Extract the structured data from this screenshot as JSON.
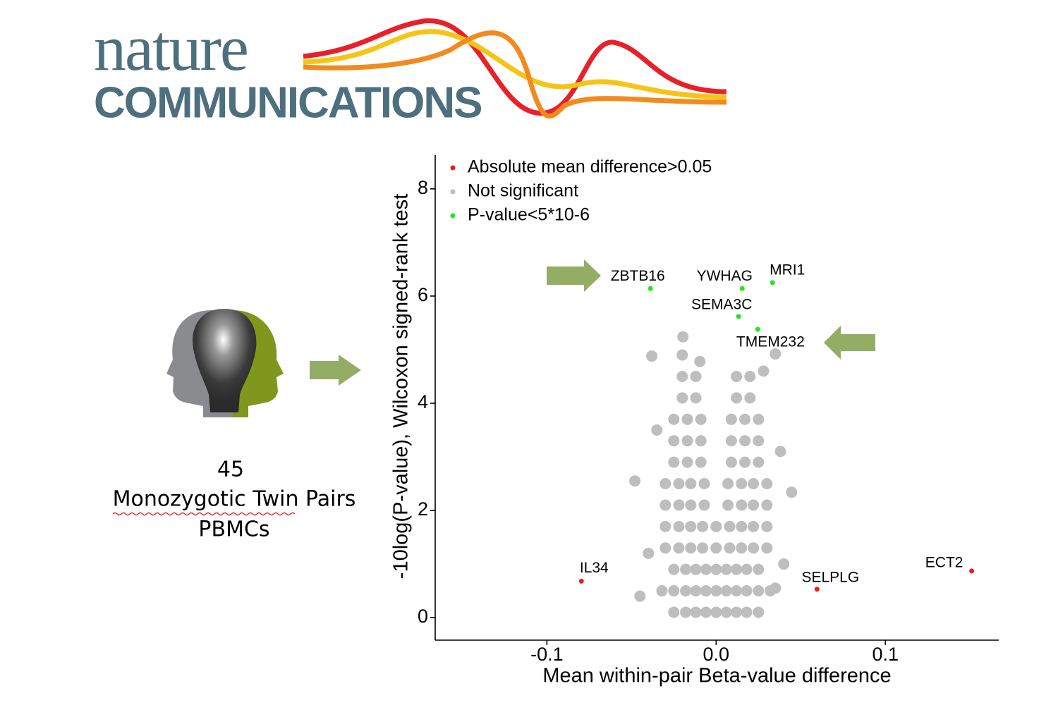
{
  "header": {
    "title": "nature",
    "subtitle": "COMMUNICATIONS"
  },
  "sample": {
    "count": "45",
    "lines": [
      "Monozygotic Twin Pairs",
      "PBMCs"
    ]
  },
  "chart_data": {
    "type": "scatter",
    "xlabel": "Mean within-pair Beta-value difference",
    "ylabel": "-10log(P-value), Wilcoxon signed-rank test",
    "xlim": [
      -0.166,
      0.167
    ],
    "ylim": [
      -0.42,
      8.63
    ],
    "xticks": [
      -0.1,
      {
        "value": 0,
        "label": "0.0"
      },
      0.1
    ],
    "yticks": [
      0,
      2,
      4,
      6,
      8
    ],
    "legend": "top-left",
    "series": [
      {
        "name": "Absolute mean difference>0.05",
        "color": "#ee1c1c",
        "x": [
          -0.0796,
          0.0596,
          0.151
        ],
        "y": [
          0.68,
          0.53,
          0.87
        ],
        "labels": [
          "IL34",
          "SELPLG",
          "ECT2"
        ]
      },
      {
        "name": "Not significant",
        "color": "#bebebe",
        "x": [
          -0.025,
          -0.018,
          -0.012,
          -0.006,
          0,
          0.006,
          0.012,
          0.018,
          0.025,
          -0.032,
          -0.025,
          -0.018,
          -0.012,
          -0.006,
          0,
          0.006,
          0.012,
          0.018,
          0.025,
          0.032,
          -0.025,
          -0.018,
          -0.012,
          -0.006,
          0,
          0.006,
          0.012,
          0.018,
          0.025,
          -0.03,
          -0.022,
          -0.015,
          -0.008,
          0,
          0.008,
          0.015,
          0.022,
          0.03,
          -0.03,
          -0.022,
          -0.015,
          -0.008,
          0,
          0.008,
          0.015,
          0.022,
          0.03,
          -0.03,
          -0.022,
          -0.015,
          -0.007,
          0.007,
          0.015,
          0.022,
          0.03,
          -0.03,
          -0.022,
          -0.015,
          -0.007,
          0.007,
          0.015,
          0.022,
          0.03,
          -0.025,
          -0.017,
          -0.009,
          0.009,
          0.017,
          0.025,
          -0.025,
          -0.017,
          -0.009,
          0.009,
          0.017,
          0.025,
          -0.025,
          -0.017,
          -0.009,
          0.009,
          0.017,
          0.025,
          -0.02,
          -0.012,
          0.012,
          0.02,
          -0.02,
          -0.012,
          0.012,
          0.02,
          -0.0196,
          -0.038,
          -0.0096,
          0.035,
          0.0446,
          -0.048,
          0.035,
          -0.04,
          -0.045,
          0.04,
          0.038,
          -0.035,
          -0.02,
          0.028
        ],
        "y": [
          0.1,
          0.1,
          0.1,
          0.1,
          0.1,
          0.1,
          0.1,
          0.1,
          0.1,
          0.5,
          0.5,
          0.5,
          0.5,
          0.5,
          0.5,
          0.5,
          0.5,
          0.5,
          0.5,
          0.5,
          0.9,
          0.9,
          0.9,
          0.9,
          0.9,
          0.9,
          0.9,
          0.9,
          0.9,
          1.3,
          1.3,
          1.3,
          1.3,
          1.3,
          1.3,
          1.3,
          1.3,
          1.3,
          1.7,
          1.7,
          1.7,
          1.7,
          1.7,
          1.7,
          1.7,
          1.7,
          1.7,
          2.1,
          2.1,
          2.1,
          2.1,
          2.1,
          2.1,
          2.1,
          2.1,
          2.5,
          2.5,
          2.5,
          2.5,
          2.5,
          2.5,
          2.5,
          2.5,
          2.9,
          2.9,
          2.9,
          2.9,
          2.9,
          2.9,
          3.3,
          3.3,
          3.3,
          3.3,
          3.3,
          3.3,
          3.7,
          3.7,
          3.7,
          3.7,
          3.7,
          3.7,
          4.1,
          4.1,
          4.1,
          4.1,
          4.5,
          4.5,
          4.5,
          4.5,
          5.24,
          4.88,
          4.78,
          4.92,
          2.34,
          2.55,
          0.55,
          1.2,
          0.4,
          1.0,
          3.1,
          3.5,
          4.9,
          4.6
        ]
      },
      {
        "name": "P-value<5*10-6",
        "color": "#1ee81e",
        "x": [
          -0.0388,
          0.0154,
          0.0333,
          0.0133,
          0.0246
        ],
        "y": [
          6.14,
          6.14,
          6.25,
          5.62,
          5.38
        ],
        "labels": [
          "ZBTB16",
          "YWHAG",
          "MRI1",
          "SEMA3C",
          "TMEM232"
        ]
      }
    ]
  }
}
